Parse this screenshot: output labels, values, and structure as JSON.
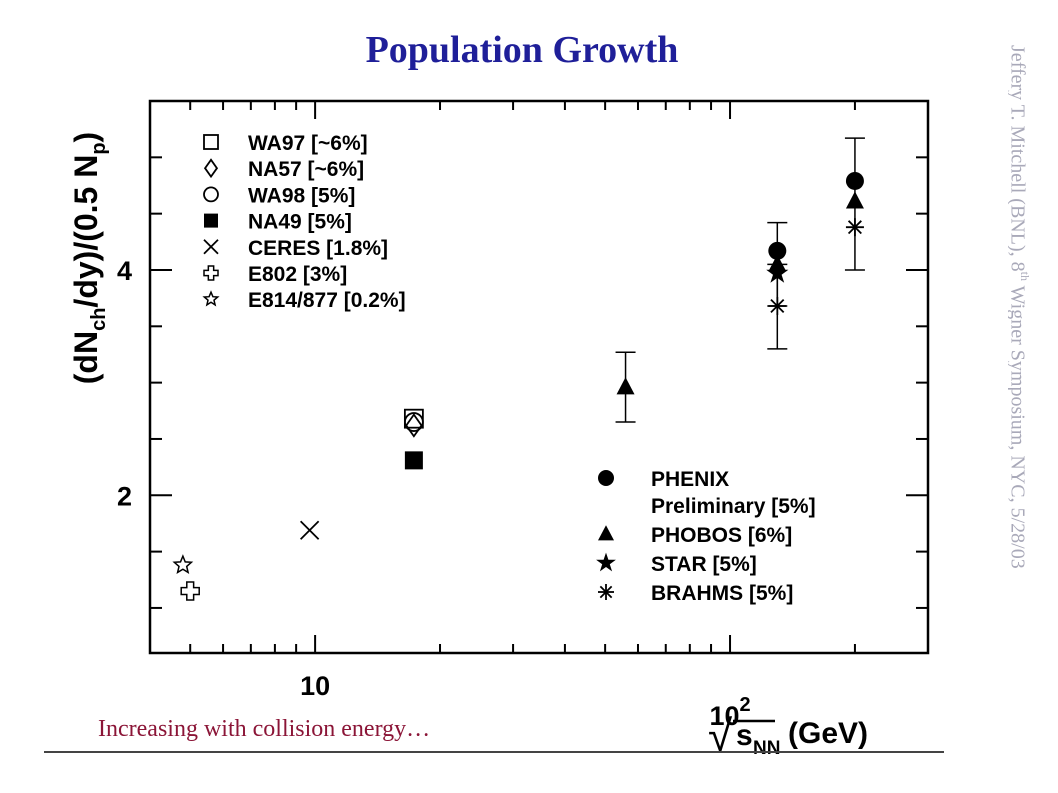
{
  "page": {
    "title": "Population Growth",
    "caption": "Increasing with collision energy…",
    "credit_main": "Jeffery T. Mitchell (BNL), 8",
    "credit_sup": "th",
    "credit_tail": " Wigner Symposium, NYC, 5/28/03"
  },
  "chart_data": {
    "type": "scatter",
    "xlabel": "√s_NN (GeV)",
    "xlabel_parts": {
      "radical": "√",
      "s": "s",
      "sub": "NN",
      "unit": "(GeV)"
    },
    "ylabel": "(dN_ch/dy)/(0.5 N_p)",
    "ylabel_parts": {
      "a": "(dN",
      "sub1": "ch",
      "b": "/dy)/(0.5 N",
      "sub2": "p",
      "c": ")"
    },
    "x_scale": "log",
    "xlim": [
      4,
      300
    ],
    "ylim": [
      0.6,
      5.5
    ],
    "x_ticks": [
      {
        "value": 10,
        "label": "10"
      },
      {
        "value": 100,
        "label": "10",
        "sup": "2"
      }
    ],
    "y_ticks": [
      {
        "value": 2,
        "label": "2"
      },
      {
        "value": 4,
        "label": "4"
      }
    ],
    "grid": false,
    "legend_upper_left": [
      {
        "name": "WA97 [~6%]",
        "marker": "open-square"
      },
      {
        "name": "NA57 [~6%]",
        "marker": "open-diamond"
      },
      {
        "name": "WA98 [5%]",
        "marker": "open-circle"
      },
      {
        "name": "NA49 [5%]",
        "marker": "filled-square"
      },
      {
        "name": "CERES [1.8%]",
        "marker": "cross-x"
      },
      {
        "name": "E802 [3%]",
        "marker": "open-plus"
      },
      {
        "name": "E814/877 [0.2%]",
        "marker": "open-star"
      }
    ],
    "legend_lower_right": [
      {
        "name": "PHENIX",
        "name2": "Preliminary [5%]",
        "marker": "filled-circle"
      },
      {
        "name": "PHOBOS [6%]",
        "marker": "filled-triangle"
      },
      {
        "name": "STAR [5%]",
        "marker": "filled-star"
      },
      {
        "name": "BRAHMS [5%]",
        "marker": "asterisk"
      }
    ],
    "series": [
      {
        "name": "WA97 [~6%]",
        "marker": "open-square",
        "points": [
          {
            "x": 17.3,
            "y": 2.68
          }
        ]
      },
      {
        "name": "NA57 [~6%]",
        "marker": "open-diamond",
        "points": [
          {
            "x": 17.3,
            "y": 2.62
          }
        ]
      },
      {
        "name": "WA98 [5%]",
        "marker": "open-circle",
        "points": [
          {
            "x": 17.3,
            "y": 2.65
          }
        ]
      },
      {
        "name": "NA49 [5%]",
        "marker": "filled-square",
        "points": [
          {
            "x": 17.3,
            "y": 2.31
          }
        ]
      },
      {
        "name": "CERES [1.8%]",
        "marker": "cross-x",
        "points": [
          {
            "x": 9.7,
            "y": 1.69
          }
        ]
      },
      {
        "name": "E802 [3%]",
        "marker": "open-plus",
        "points": [
          {
            "x": 5.0,
            "y": 1.15
          }
        ]
      },
      {
        "name": "E814/877 [0.2%]",
        "marker": "open-star",
        "points": [
          {
            "x": 4.8,
            "y": 1.38
          }
        ]
      },
      {
        "name": "PHENIX Preliminary [5%]",
        "marker": "filled-circle",
        "points": [
          {
            "x": 130,
            "y": 4.17
          },
          {
            "x": 200,
            "y": 4.79
          }
        ]
      },
      {
        "name": "PHOBOS [6%]",
        "marker": "filled-triangle",
        "points": [
          {
            "x": 56,
            "y": 2.96,
            "err": [
              2.65,
              3.27
            ]
          },
          {
            "x": 130,
            "y": 4.05,
            "err": [
              3.68,
              4.42
            ]
          },
          {
            "x": 200,
            "y": 4.61,
            "err": [
              4.0,
              5.17
            ]
          }
        ]
      },
      {
        "name": "STAR [5%]",
        "marker": "filled-star",
        "points": [
          {
            "x": 130,
            "y": 3.97
          }
        ]
      },
      {
        "name": "BRAHMS [5%]",
        "marker": "asterisk",
        "points": [
          {
            "x": 130,
            "y": 3.68,
            "err": [
              3.3,
              4.05
            ]
          },
          {
            "x": 200,
            "y": 4.38
          }
        ]
      }
    ]
  }
}
